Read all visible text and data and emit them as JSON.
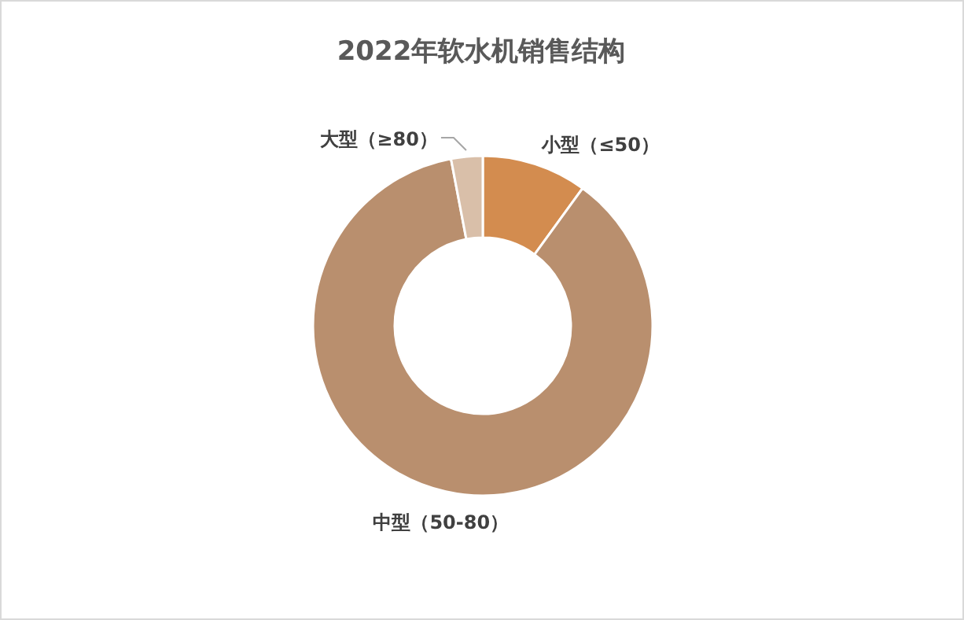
{
  "chart_data": {
    "type": "donut",
    "title": "2022年软水机销售结构",
    "categories": [
      "小型（≤50）",
      "中型（50-80）",
      "大型（≥80）"
    ],
    "values": [
      10,
      87,
      3
    ],
    "colors": [
      "#d38c4f",
      "#b98f6e",
      "#d9bfa9"
    ]
  }
}
